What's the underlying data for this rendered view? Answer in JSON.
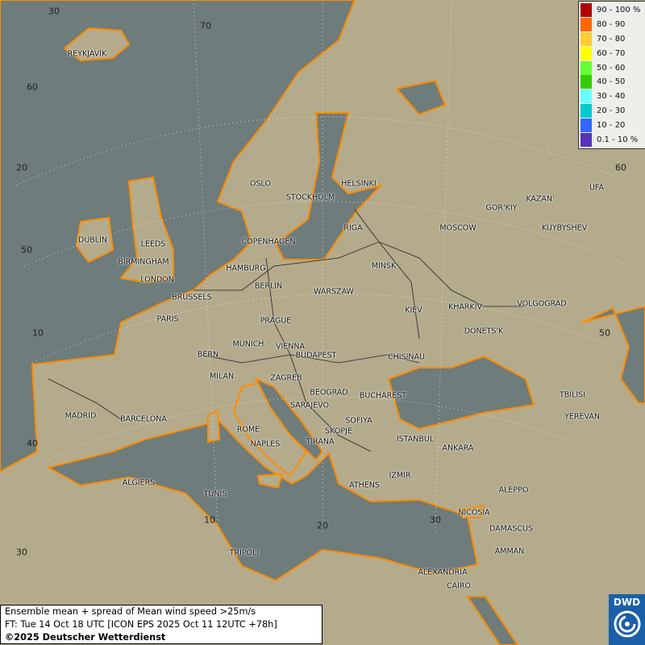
{
  "colors": {
    "sea": "#6e7c7b",
    "land": "#b4ab8c",
    "coast": "#ff8c00",
    "border": "#222222",
    "dwd_blue": "#1b5fa8"
  },
  "legend": [
    {
      "label": "90 - 100 %",
      "color": "#b30000"
    },
    {
      "label": "80 - 90",
      "color": "#ff6600"
    },
    {
      "label": "70 - 80",
      "color": "#ffcc33"
    },
    {
      "label": "60 - 70",
      "color": "#ffff00"
    },
    {
      "label": "50 - 60",
      "color": "#66ff33"
    },
    {
      "label": "40 - 50",
      "color": "#33cc00"
    },
    {
      "label": "30 - 40",
      "color": "#66ffff"
    },
    {
      "label": "20 - 30",
      "color": "#00cccc"
    },
    {
      "label": "10 - 20",
      "color": "#3366ff"
    },
    {
      "label": "0.1 - 10 %",
      "color": "#5533bb"
    }
  ],
  "info": {
    "line1": "Ensemble mean + spread of Mean wind speed >25m/s",
    "line2": "FT: Tue 14 Oct 18 UTC [ICON EPS 2025 Oct 11 12UTC +78h]",
    "line3": "©2025 Deutscher Wetterdienst"
  },
  "logo": {
    "text": "DWD",
    "icon": "dwd-swirl-icon"
  },
  "graticule": [
    "30",
    "70",
    "60",
    "20",
    "60",
    "50",
    "10",
    "50",
    "40",
    "10",
    "20",
    "30",
    "30"
  ],
  "cities": [
    "REYKJAVIK",
    "OSLO",
    "HELSINKI",
    "STOCKHOLM",
    "GOR'KIY",
    "KAZAN'",
    "UFA",
    "RIGA",
    "MOSCOW",
    "KUYBYSHEV",
    "DUBLIN",
    "LEEDS",
    "COPENHAGEN",
    "BIRMINGHAM",
    "MINSK",
    "HAMBURG",
    "LONDON",
    "BERLIN",
    "WARSZAW",
    "BRUSSELS",
    "VOLGOGRAD",
    "KIEV",
    "KHARKIV",
    "PARIS",
    "PRAGUE",
    "DONETS'K",
    "MUNICH",
    "VIENNA",
    "BERN",
    "BUDAPEST",
    "CHISINAU",
    "MILAN",
    "ZAGREB",
    "BEOGRAD",
    "BUCHAREST",
    "TBILISI",
    "SARAJEVO",
    "MADRID",
    "BARCELONA",
    "YEREVAN",
    "SOFIYA",
    "ROME",
    "SKOPJE",
    "ISTANBUL",
    "TIRANA",
    "NAPLES",
    "ANKARA",
    "IZMIR",
    "ALGIERS",
    "ATHENS",
    "ALEPPO",
    "TUNIS",
    "NICOSIA",
    "DAMASCUS",
    "AMMAN",
    "TRIPOLI",
    "ALEXANDRIA",
    "CAIRO"
  ]
}
